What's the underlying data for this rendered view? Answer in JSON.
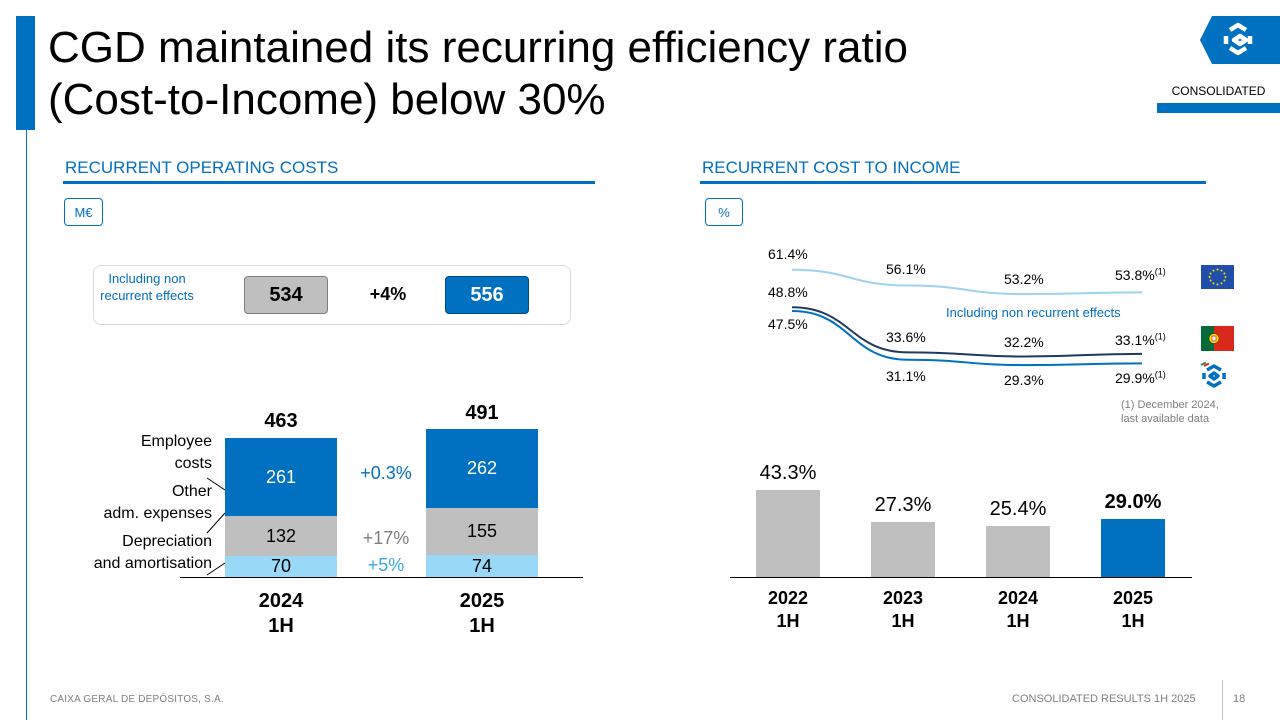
{
  "title_line1": "CGD maintained its recurring efficiency ratio",
  "title_line2": "(Cost-to-Income) below 30%",
  "tag": "CONSOLIDATED",
  "colors": {
    "brand_blue": "#0070c0",
    "gray": "#bfbfbf",
    "light_blue": "#99d9f7",
    "curve_eu": "#9dd3ef",
    "curve_pt": "#1f3a5f",
    "curve_cgd": "#0070c0"
  },
  "left": {
    "section_title": "RECURRENT OPERATING COSTS",
    "unit": "M€",
    "nonrec_label": "Including non recurrent effects",
    "nonrec_a": "534",
    "nonrec_growth": "+4%",
    "nonrec_b": "556",
    "component_labels": [
      "Employee costs",
      "Other adm. expenses",
      "Depreciation and amortisation"
    ],
    "employee_l1": "Employee",
    "employee_l2": "costs",
    "other_l1": "Other",
    "other_l2": "adm. expenses",
    "dep_l1": "Depreciation",
    "dep_l2": "and amortisation",
    "growth_employee": "+0.3%",
    "growth_other": "+17%",
    "growth_dep": "+5%",
    "period_2024_l1": "2024",
    "period_2024_l2": "1H",
    "period_2025_l1": "2025",
    "period_2025_l2": "1H",
    "chart_data": {
      "type": "bar",
      "stacked": true,
      "title": "RECURRENT OPERATING COSTS",
      "unit": "M€",
      "categories": [
        "2024 1H",
        "2025 1H"
      ],
      "series": [
        {
          "name": "Depreciation and amortisation",
          "values": [
            70,
            74
          ],
          "labels": [
            "70",
            "74"
          ]
        },
        {
          "name": "Other adm. expenses",
          "values": [
            132,
            155
          ],
          "labels": [
            "132",
            "155"
          ]
        },
        {
          "name": "Employee costs",
          "values": [
            261,
            262
          ],
          "labels": [
            "261",
            "262"
          ]
        }
      ],
      "totals": [
        "463",
        "491"
      ],
      "ylim": [
        0,
        560
      ]
    }
  },
  "right": {
    "section_title": "RECURRENT COST TO INCOME",
    "unit": "%",
    "nonrec_note": "Including non recurrent effects",
    "footnote_l1": "(1) December 2024,",
    "footnote_l2": "last available data",
    "sup_mark": "(1)",
    "chart_data": [
      {
        "type": "line",
        "title": "Including non recurrent effects",
        "x": [
          "2022 1H",
          "2023 1H",
          "2024 1H",
          "2025 1H"
        ],
        "series": [
          {
            "name": "Euro area",
            "values": [
              61.4,
              56.1,
              53.2,
              53.8
            ],
            "labels": [
              "61.4%",
              "56.1%",
              "53.2%",
              "53.8%"
            ]
          },
          {
            "name": "Portugal",
            "values": [
              48.8,
              33.6,
              32.2,
              33.1
            ],
            "labels": [
              "48.8%",
              "33.6%",
              "32.2%",
              "33.1%"
            ]
          },
          {
            "name": "CGD",
            "values": [
              47.5,
              31.1,
              29.3,
              29.9
            ],
            "labels": [
              "47.5%",
              "31.1%",
              "29.3%",
              "29.9%"
            ]
          }
        ]
      },
      {
        "type": "bar",
        "title": "RECURRENT COST TO INCOME",
        "categories": [
          "2022 1H",
          "2023 1H",
          "2024 1H",
          "2025 1H"
        ],
        "values": [
          43.3,
          27.3,
          25.4,
          29.0
        ],
        "labels": [
          "43.3%",
          "27.3%",
          "25.4%",
          "29.0%"
        ],
        "ylim": [
          0,
          50
        ]
      }
    ],
    "years": [
      {
        "l1": "2022",
        "l2": "1H"
      },
      {
        "l1": "2023",
        "l2": "1H"
      },
      {
        "l1": "2024",
        "l2": "1H"
      },
      {
        "l1": "2025",
        "l2": "1H"
      }
    ]
  },
  "footer_left": "CAIXA GERAL DE DEPÓSITOS, S.A.",
  "footer_right": "CONSOLIDATED RESULTS 1H 2025",
  "page_number": "18"
}
